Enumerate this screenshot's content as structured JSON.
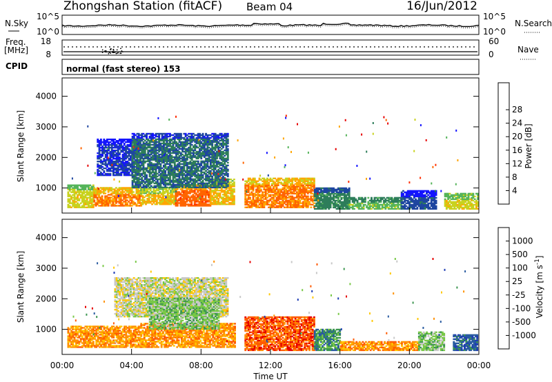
{
  "header": {
    "station": "Zhongshan Station (fitACF)",
    "beam": "Beam 04",
    "date": "16/Jun/2012"
  },
  "params": {
    "nsky_label": "N.Sky",
    "nsky_ticks": [
      "10^5",
      "10^0"
    ],
    "nsearch_label": "N.Search",
    "nsearch_ticks": [
      "10^5",
      "10^0"
    ],
    "freq_label": "Freq.",
    "freq_unit": "[MHz]",
    "freq_ticks": [
      "18",
      "8"
    ],
    "nave_label": "Nave",
    "nave_ticks": [
      "60",
      "0"
    ],
    "cpid_label": "CPID",
    "cpid_value": "normal (fast stereo) 153"
  },
  "colors": {
    "power": [
      "#1414ff",
      "#1e46a0",
      "#2d7d5a",
      "#55b45a",
      "#c8d21e",
      "#ffa500",
      "#ff6400",
      "#ff2d00",
      "#e60000"
    ],
    "velocity": [
      "#e60000",
      "#ff5a00",
      "#ff9100",
      "#ffc800",
      "#c8c8c8",
      "#78c846",
      "#3c9650",
      "#285aa0",
      "#1e3cb4"
    ]
  },
  "chart_data": [
    {
      "type": "heatmap",
      "panel": "power",
      "xlabel": "",
      "ylabel": "Slant Range [km]",
      "yticks": [
        "1000",
        "2000",
        "3000",
        "4000"
      ],
      "ylim": [
        180,
        4600
      ],
      "xlim": [
        0,
        24
      ],
      "colorbar": {
        "label": "Power [dB]",
        "ticks": [
          "4",
          "8",
          "12",
          "16",
          "20",
          "24",
          "28"
        ],
        "range": [
          0,
          32
        ]
      },
      "echo_regions": [
        {
          "t0": 0.3,
          "t1": 1.8,
          "r0": 350,
          "r1": 1100,
          "level": 20
        },
        {
          "t0": 1.8,
          "t1": 4.5,
          "r0": 400,
          "r1": 1000,
          "level": 26
        },
        {
          "t0": 4.5,
          "t1": 6.5,
          "r0": 450,
          "r1": 1000,
          "level": 22
        },
        {
          "t0": 6.5,
          "t1": 8.5,
          "r0": 400,
          "r1": 1100,
          "level": 28
        },
        {
          "t0": 8.5,
          "t1": 9.9,
          "r0": 450,
          "r1": 1300,
          "level": 22
        },
        {
          "t0": 2.0,
          "t1": 4.5,
          "r0": 1400,
          "r1": 2600,
          "level": 6
        },
        {
          "t0": 4.0,
          "t1": 9.5,
          "r0": 1000,
          "r1": 2800,
          "level": 10
        },
        {
          "t0": 10.5,
          "t1": 14.5,
          "r0": 350,
          "r1": 1300,
          "level": 26
        },
        {
          "t0": 14.5,
          "t1": 16.5,
          "r0": 300,
          "r1": 1000,
          "level": 12
        },
        {
          "t0": 16.5,
          "t1": 19.5,
          "r0": 300,
          "r1": 700,
          "level": 16
        },
        {
          "t0": 19.5,
          "t1": 21.5,
          "r0": 300,
          "r1": 900,
          "level": 8
        },
        {
          "t0": 22.0,
          "t1": 23.9,
          "r0": 300,
          "r1": 800,
          "level": 20
        }
      ]
    },
    {
      "type": "heatmap",
      "panel": "velocity",
      "xlabel": "Time UT",
      "ylabel": "Slant Range [km]",
      "yticks": [
        "1000",
        "2000",
        "3000",
        "4000"
      ],
      "ylim": [
        180,
        4600
      ],
      "xticks": [
        "00:00",
        "04:00",
        "08:00",
        "12:00",
        "16:00",
        "20:00",
        "00:00"
      ],
      "xlim": [
        0,
        24
      ],
      "colorbar": {
        "label": "Velocity [m s",
        "label_sup": "-1",
        "label_end": "]",
        "ticks": [
          "-1000",
          "-500",
          "-100",
          "-25",
          "25",
          "100",
          "500",
          "1000"
        ]
      },
      "echo_regions": [
        {
          "t0": 0.3,
          "t1": 4.5,
          "r0": 400,
          "r1": 1100,
          "level": 2
        },
        {
          "t0": 4.5,
          "t1": 9.9,
          "r0": 400,
          "r1": 1200,
          "level": 2
        },
        {
          "t0": 3.0,
          "t1": 9.5,
          "r0": 1400,
          "r1": 2700,
          "level": 4
        },
        {
          "t0": 5.0,
          "t1": 9.0,
          "r0": 1000,
          "r1": 2000,
          "level": 5
        },
        {
          "t0": 10.5,
          "t1": 14.5,
          "r0": 300,
          "r1": 1400,
          "level": 1
        },
        {
          "t0": 14.5,
          "t1": 16.0,
          "r0": 300,
          "r1": 1000,
          "level": 6
        },
        {
          "t0": 16.0,
          "t1": 20.5,
          "r0": 300,
          "r1": 600,
          "level": 2
        },
        {
          "t0": 20.5,
          "t1": 22.0,
          "r0": 300,
          "r1": 900,
          "level": 5
        },
        {
          "t0": 22.5,
          "t1": 23.9,
          "r0": 300,
          "r1": 800,
          "level": 7
        }
      ]
    }
  ]
}
